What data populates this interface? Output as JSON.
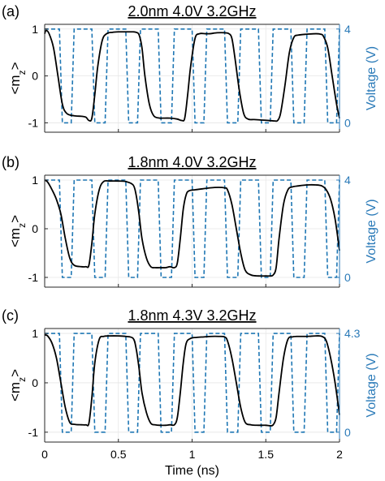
{
  "chart_data": [
    {
      "type": "line",
      "panel_label": "(a)",
      "title": "2.0nm 4.0V 3.2GHz",
      "ylabel_left": "<m_z>",
      "ylabel_right": "Voltage (V)",
      "xlim": [
        0,
        2
      ],
      "ylim_left": [
        -1.2,
        1.1
      ],
      "left_ticks": [
        "1",
        "0",
        "-1"
      ],
      "right_ticks": [
        "4",
        "0"
      ],
      "voltage_max": 4.0,
      "series": [
        {
          "values_left_axis": true,
          "x": [
            0,
            0.01,
            0.03,
            0.06,
            0.09,
            0.12,
            0.15,
            0.2,
            0.25,
            0.28,
            0.3,
            0.32,
            0.34,
            0.36,
            0.39,
            0.42,
            0.46,
            0.5,
            0.55,
            0.6,
            0.62,
            0.64,
            0.66,
            0.68,
            0.71,
            0.74,
            0.78,
            0.8,
            0.85,
            0.9,
            0.93,
            0.95,
            0.97,
            0.99,
            1.02,
            1.05,
            1.09,
            1.12,
            1.17,
            1.22,
            1.25,
            1.27,
            1.29,
            1.32,
            1.35,
            1.38,
            1.42,
            1.47,
            1.52,
            1.56,
            1.58,
            1.6,
            1.63,
            1.66,
            1.69,
            1.72,
            1.78,
            1.84,
            1.87,
            1.89,
            1.92,
            1.95,
            1.98,
            2.0
          ],
          "y": [
            0.9,
            0.97,
            0.9,
            0.6,
            0.0,
            -0.6,
            -0.8,
            -0.85,
            -0.86,
            -0.88,
            -0.95,
            -0.9,
            -0.4,
            0.2,
            0.75,
            0.9,
            0.93,
            0.94,
            0.94,
            0.94,
            0.93,
            0.88,
            0.6,
            0.0,
            -0.6,
            -0.85,
            -0.9,
            -0.9,
            -0.9,
            -0.92,
            -0.95,
            -0.9,
            -0.4,
            0.2,
            0.8,
            0.9,
            0.9,
            0.9,
            0.92,
            0.92,
            0.9,
            0.8,
            0.4,
            -0.3,
            -0.8,
            -0.92,
            -0.93,
            -0.94,
            -0.95,
            -0.96,
            -0.95,
            -0.8,
            -0.2,
            0.5,
            0.82,
            0.87,
            0.89,
            0.9,
            0.89,
            0.85,
            0.6,
            0.0,
            -0.6,
            -0.9
          ]
        },
        {
          "values_right_axis": true,
          "x": [
            0,
            0.1,
            0.12,
            0.18,
            0.2,
            0.32,
            0.34,
            0.41,
            0.43,
            0.55,
            0.57,
            0.63,
            0.65,
            0.77,
            0.79,
            0.86,
            0.88,
            1.0,
            1.02,
            1.08,
            1.1,
            1.22,
            1.24,
            1.31,
            1.33,
            1.45,
            1.47,
            1.53,
            1.55,
            1.67,
            1.69,
            1.76,
            1.78,
            1.9,
            1.92,
            1.98,
            2.0
          ],
          "y": [
            4,
            4,
            0,
            0,
            4,
            4,
            0,
            0,
            4,
            4,
            0,
            0,
            4,
            4,
            0,
            0,
            4,
            4,
            0,
            0,
            4,
            4,
            0,
            0,
            4,
            4,
            0,
            0,
            4,
            4,
            0,
            0,
            4,
            4,
            0,
            0,
            4
          ]
        }
      ]
    },
    {
      "type": "line",
      "panel_label": "(b)",
      "title": "1.8nm 4.0V 3.2GHz",
      "ylabel_left": "<m_z>",
      "ylabel_right": "Voltage (V)",
      "xlim": [
        0,
        2
      ],
      "ylim_left": [
        -1.2,
        1.1
      ],
      "left_ticks": [
        "1",
        "0",
        "-1"
      ],
      "right_ticks": [
        "4",
        "0"
      ],
      "voltage_max": 4.0,
      "series": [
        {
          "values_left_axis": true,
          "x": [
            0,
            0.02,
            0.05,
            0.08,
            0.11,
            0.14,
            0.17,
            0.2,
            0.25,
            0.28,
            0.3,
            0.32,
            0.34,
            0.37,
            0.4,
            0.44,
            0.5,
            0.55,
            0.6,
            0.62,
            0.64,
            0.66,
            0.69,
            0.72,
            0.75,
            0.78,
            0.82,
            0.85,
            0.88,
            0.9,
            0.92,
            0.94,
            0.96,
            0.98,
            1.02,
            1.07,
            1.12,
            1.18,
            1.22,
            1.24,
            1.27,
            1.3,
            1.33,
            1.36,
            1.4,
            1.45,
            1.5,
            1.53,
            1.55,
            1.57,
            1.59,
            1.62,
            1.65,
            1.68,
            1.72,
            1.78,
            1.84,
            1.88,
            1.91,
            1.94,
            1.97,
            2.0
          ],
          "y": [
            1.0,
            0.96,
            0.8,
            0.6,
            0.3,
            -0.2,
            -0.6,
            -0.75,
            -0.78,
            -0.78,
            -0.75,
            -0.3,
            0.3,
            0.8,
            0.97,
            0.98,
            0.98,
            0.97,
            0.9,
            0.7,
            0.3,
            -0.2,
            -0.6,
            -0.78,
            -0.8,
            -0.8,
            -0.8,
            -0.78,
            -0.8,
            -0.7,
            -0.2,
            0.4,
            0.7,
            0.78,
            0.8,
            0.82,
            0.84,
            0.85,
            0.84,
            0.8,
            0.5,
            0.0,
            -0.5,
            -0.85,
            -0.95,
            -0.97,
            -0.97,
            -0.97,
            -0.95,
            -0.8,
            -0.2,
            0.5,
            0.8,
            0.86,
            0.88,
            0.9,
            0.9,
            0.88,
            0.8,
            0.6,
            0.2,
            -0.45
          ]
        },
        {
          "values_right_axis": true,
          "x": [
            0,
            0.1,
            0.12,
            0.18,
            0.2,
            0.32,
            0.34,
            0.41,
            0.43,
            0.55,
            0.57,
            0.63,
            0.65,
            0.77,
            0.79,
            0.86,
            0.88,
            1.0,
            1.02,
            1.08,
            1.1,
            1.22,
            1.24,
            1.31,
            1.33,
            1.45,
            1.47,
            1.53,
            1.55,
            1.67,
            1.69,
            1.76,
            1.78,
            1.9,
            1.92,
            1.98,
            2.0
          ],
          "y": [
            4,
            4,
            0,
            0,
            4,
            4,
            0,
            0,
            4,
            4,
            0,
            0,
            4,
            4,
            0,
            0,
            4,
            4,
            0,
            0,
            4,
            4,
            0,
            0,
            4,
            4,
            0,
            0,
            4,
            4,
            0,
            0,
            4,
            4,
            0,
            0,
            4
          ]
        }
      ]
    },
    {
      "type": "line",
      "panel_label": "(c)",
      "title": "1.8nm 4.3V 3.2GHz",
      "ylabel_left": "<m_z>",
      "ylabel_right": "Voltage (V)",
      "xlabel": "Time (ns)",
      "xlim": [
        0,
        2
      ],
      "xticks": [
        "0",
        "0.5",
        "1",
        "1.5",
        "2"
      ],
      "ylim_left": [
        -1.2,
        1.1
      ],
      "left_ticks": [
        "1",
        "0",
        "-1"
      ],
      "right_ticks": [
        "4.3",
        "0"
      ],
      "voltage_max": 4.3,
      "series": [
        {
          "values_left_axis": true,
          "x": [
            0,
            0.02,
            0.05,
            0.08,
            0.11,
            0.14,
            0.17,
            0.2,
            0.25,
            0.28,
            0.3,
            0.32,
            0.34,
            0.37,
            0.4,
            0.44,
            0.5,
            0.55,
            0.6,
            0.62,
            0.64,
            0.66,
            0.69,
            0.72,
            0.75,
            0.78,
            0.82,
            0.85,
            0.88,
            0.9,
            0.92,
            0.94,
            0.96,
            0.99,
            1.03,
            1.08,
            1.13,
            1.18,
            1.22,
            1.24,
            1.27,
            1.3,
            1.33,
            1.36,
            1.4,
            1.45,
            1.5,
            1.53,
            1.55,
            1.57,
            1.59,
            1.62,
            1.65,
            1.68,
            1.72,
            1.78,
            1.84,
            1.88,
            1.91,
            1.94,
            1.97,
            2.0
          ],
          "y": [
            0.97,
            0.95,
            0.8,
            0.5,
            0.0,
            -0.5,
            -0.8,
            -0.84,
            -0.85,
            -0.85,
            -0.82,
            -0.3,
            0.4,
            0.88,
            0.94,
            0.95,
            0.95,
            0.94,
            0.9,
            0.7,
            0.3,
            -0.2,
            -0.6,
            -0.82,
            -0.85,
            -0.86,
            -0.86,
            -0.85,
            -0.85,
            -0.7,
            -0.2,
            0.4,
            0.8,
            0.9,
            0.92,
            0.93,
            0.94,
            0.94,
            0.93,
            0.85,
            0.5,
            0.0,
            -0.5,
            -0.8,
            -0.85,
            -0.86,
            -0.86,
            -0.87,
            -0.85,
            -0.7,
            -0.2,
            0.5,
            0.88,
            0.93,
            0.94,
            0.94,
            0.95,
            0.94,
            0.85,
            0.5,
            0.0,
            -0.65
          ]
        },
        {
          "values_right_axis": true,
          "x": [
            0,
            0.1,
            0.12,
            0.18,
            0.2,
            0.32,
            0.34,
            0.41,
            0.43,
            0.55,
            0.57,
            0.63,
            0.65,
            0.77,
            0.79,
            0.86,
            0.88,
            1.0,
            1.02,
            1.08,
            1.1,
            1.22,
            1.24,
            1.31,
            1.33,
            1.45,
            1.47,
            1.53,
            1.55,
            1.67,
            1.69,
            1.76,
            1.78,
            1.9,
            1.92,
            1.98,
            2.0
          ],
          "y": [
            4.3,
            4.3,
            0,
            0,
            4.3,
            4.3,
            0,
            0,
            4.3,
            4.3,
            0,
            0,
            4.3,
            4.3,
            0,
            0,
            4.3,
            4.3,
            0,
            0,
            4.3,
            4.3,
            0,
            0,
            4.3,
            4.3,
            0,
            0,
            4.3,
            4.3,
            0,
            0,
            4.3,
            4.3,
            0,
            0,
            4.3
          ]
        }
      ]
    }
  ],
  "colors": {
    "magnetization": "#000000",
    "voltage": "#1f77b4",
    "right_axis": "#2a7ab8",
    "axis": "#262626",
    "grid": "#e6e6e6"
  }
}
